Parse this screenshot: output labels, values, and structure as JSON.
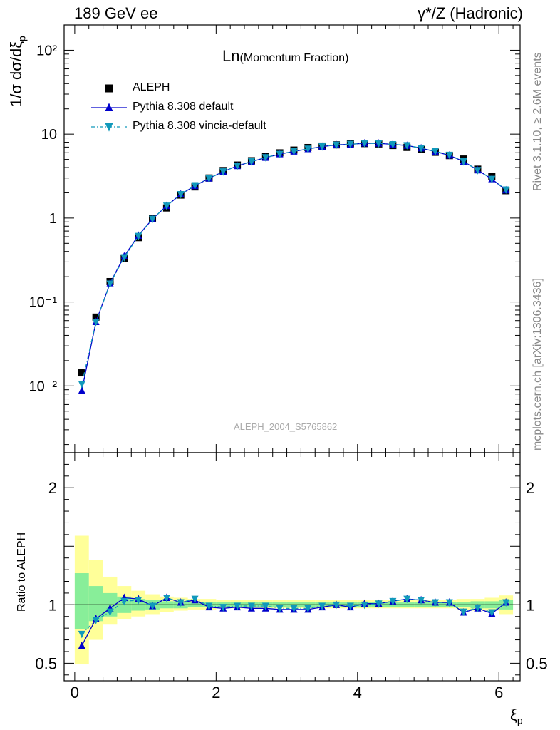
{
  "header": {
    "left": "189 GeV ee",
    "right": "γ*/Z (Hadronic)"
  },
  "plot_title": "Ln(Momentum Fraction)",
  "plot_title_main": "Ln",
  "plot_title_sub": "(Momentum Fraction)",
  "side_text": {
    "rivet": "Rivet 3.1.10, ≥ 2.6M events",
    "mcplots": "mcplots.cern.ch [arXiv:1306.3436]"
  },
  "watermark": "ALEPH_2004_S5765862",
  "ylabel_main": "1/σ dσ/dξ",
  "ylabel_main_sub": "p",
  "ylabel_ratio": "Ratio to ALEPH",
  "xlabel": "ξ",
  "xlabel_sub": "p",
  "legend": [
    {
      "label": "ALEPH",
      "color": "#000000",
      "marker": "square"
    },
    {
      "label": "Pythia 8.308 default",
      "color": "#0000cc",
      "marker": "triangle-up"
    },
    {
      "label": "Pythia 8.308 vincia-default",
      "color": "#1199bb",
      "marker": "triangle-down"
    }
  ],
  "colors": {
    "data": "#000000",
    "default": "#0000cc",
    "vincia": "#1199bb",
    "band_outer": "#ffff99",
    "band_inner": "#88ee99"
  },
  "chart_data": {
    "type": "scatter",
    "x": [
      0.1,
      0.3,
      0.5,
      0.7,
      0.9,
      1.1,
      1.3,
      1.5,
      1.7,
      1.9,
      2.1,
      2.3,
      2.5,
      2.7,
      2.9,
      3.1,
      3.3,
      3.5,
      3.7,
      3.9,
      4.1,
      4.3,
      4.5,
      4.7,
      4.9,
      5.1,
      5.3,
      5.5,
      5.7,
      5.9,
      6.1
    ],
    "series": [
      {
        "name": "ALEPH",
        "values": [
          0.0143,
          0.066,
          0.175,
          0.33,
          0.585,
          0.98,
          1.32,
          1.88,
          2.35,
          3.0,
          3.68,
          4.28,
          4.82,
          5.38,
          5.98,
          6.45,
          6.92,
          7.2,
          7.45,
          7.72,
          7.72,
          7.65,
          7.32,
          6.95,
          6.55,
          6.08,
          5.55,
          5.05,
          3.82,
          3.15,
          2.12
        ]
      },
      {
        "name": "Pythia 8.308 default",
        "values": [
          0.0088,
          0.058,
          0.168,
          0.35,
          0.62,
          0.975,
          1.4,
          1.92,
          2.42,
          2.97,
          3.58,
          4.18,
          4.7,
          5.25,
          5.78,
          6.22,
          6.65,
          7.1,
          7.45,
          7.55,
          7.78,
          7.75,
          7.55,
          7.3,
          6.8,
          6.2,
          5.58,
          4.72,
          3.72,
          2.92,
          2.15
        ]
      },
      {
        "name": "Pythia 8.308 vincia-default",
        "values": [
          0.0105,
          0.058,
          0.165,
          0.34,
          0.61,
          0.975,
          1.4,
          1.92,
          2.45,
          2.97,
          3.58,
          4.2,
          4.72,
          5.28,
          5.78,
          6.25,
          6.68,
          7.12,
          7.45,
          7.6,
          7.75,
          7.75,
          7.55,
          7.35,
          6.8,
          6.25,
          5.65,
          4.72,
          3.72,
          2.92,
          2.18
        ]
      }
    ],
    "ratio": {
      "Pythia 8.308 default": [
        0.65,
        0.88,
        0.97,
        1.06,
        1.05,
        0.99,
        1.06,
        1.02,
        1.04,
        0.98,
        0.97,
        0.98,
        0.97,
        0.97,
        0.96,
        0.96,
        0.96,
        0.98,
        1.0,
        0.98,
        1.01,
        1.01,
        1.03,
        1.05,
        1.04,
        1.02,
        1.02,
        0.935,
        0.97,
        0.925,
        1.02
      ],
      "Pythia 8.308 vincia-default": [
        0.75,
        0.87,
        0.94,
        1.03,
        1.04,
        0.99,
        1.06,
        1.02,
        1.05,
        0.99,
        0.98,
        0.99,
        0.99,
        0.99,
        0.97,
        0.97,
        0.97,
        0.99,
        1.0,
        0.99,
        1.0,
        1.01,
        1.03,
        1.05,
        1.04,
        1.02,
        1.02,
        0.94,
        0.975,
        0.935,
        1.02
      ]
    },
    "bands": {
      "edges": [
        0.0,
        0.2,
        0.4,
        0.6,
        0.8,
        1.0,
        1.2,
        1.4,
        1.6,
        1.8,
        2.0,
        2.2,
        2.4,
        2.6,
        2.8,
        3.0,
        3.2,
        3.4,
        3.6,
        3.8,
        4.0,
        4.2,
        4.4,
        4.6,
        4.8,
        5.0,
        5.2,
        5.4,
        5.6,
        5.8,
        6.0,
        6.2
      ],
      "outer_lo": [
        0.49,
        0.7,
        0.83,
        0.88,
        0.9,
        0.92,
        0.94,
        0.95,
        0.96,
        0.96,
        0.97,
        0.97,
        0.97,
        0.97,
        0.97,
        0.97,
        0.97,
        0.97,
        0.97,
        0.97,
        0.97,
        0.97,
        0.97,
        0.97,
        0.97,
        0.97,
        0.97,
        0.96,
        0.95,
        0.95,
        0.92
      ],
      "outer_hi": [
        1.59,
        1.38,
        1.24,
        1.16,
        1.12,
        1.09,
        1.07,
        1.06,
        1.05,
        1.05,
        1.04,
        1.04,
        1.04,
        1.04,
        1.04,
        1.04,
        1.04,
        1.04,
        1.04,
        1.04,
        1.04,
        1.04,
        1.04,
        1.04,
        1.04,
        1.04,
        1.04,
        1.05,
        1.05,
        1.06,
        1.08
      ],
      "inner_lo": [
        0.79,
        0.86,
        0.9,
        0.93,
        0.95,
        0.96,
        0.97,
        0.97,
        0.98,
        0.98,
        0.98,
        0.98,
        0.98,
        0.98,
        0.98,
        0.98,
        0.98,
        0.98,
        0.98,
        0.98,
        0.98,
        0.98,
        0.98,
        0.98,
        0.98,
        0.98,
        0.98,
        0.98,
        0.97,
        0.97,
        0.96
      ],
      "inner_hi": [
        1.27,
        1.16,
        1.1,
        1.07,
        1.05,
        1.04,
        1.03,
        1.03,
        1.02,
        1.02,
        1.02,
        1.02,
        1.02,
        1.02,
        1.02,
        1.02,
        1.02,
        1.02,
        1.02,
        1.02,
        1.02,
        1.02,
        1.02,
        1.02,
        1.02,
        1.02,
        1.02,
        1.02,
        1.03,
        1.03,
        1.04
      ]
    },
    "xlim": [
      -0.15,
      6.3
    ],
    "ylim_main": [
      0.0016,
      200
    ],
    "ylim_ratio": [
      0.35,
      2.3
    ],
    "yscale_main": "log",
    "x_ticks": [
      0,
      2,
      4,
      6
    ],
    "main_tick_labels": [
      "10⁻²",
      "10⁻¹",
      "1",
      "10",
      "10²"
    ],
    "ratio_ticks": [
      0.5,
      1,
      2
    ],
    "legend_position": "top-left"
  }
}
